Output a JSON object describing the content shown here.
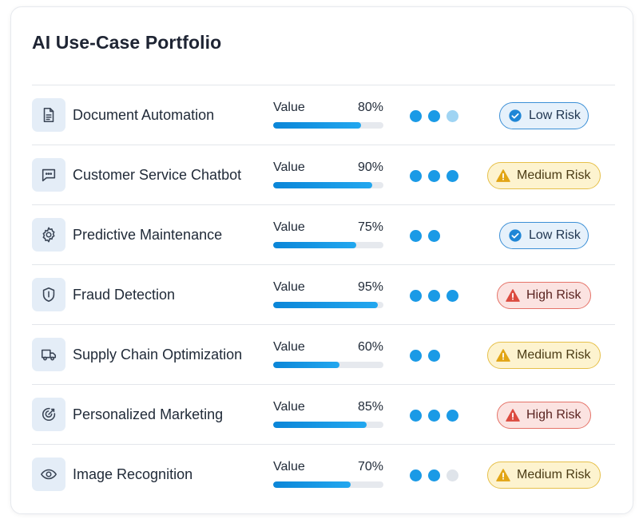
{
  "title": "AI Use-Case Portfolio",
  "colors": {
    "dot_on": "#1a9ae6",
    "dot_mid": "#9fd4f3",
    "dot_off": "#dfe4ea",
    "low_bg": "#e6f1fb",
    "low_border": "#3b8fd6",
    "low_text": "#1f3550",
    "medium_bg": "#fdf3cf",
    "medium_border": "#e6c04a",
    "medium_text": "#4a3b14",
    "high_bg": "#fbe3e1",
    "high_border": "#e57368",
    "high_text": "#5a2320"
  },
  "items": [
    {
      "name": "Document Automation",
      "icon": "document-icon",
      "metric_label": "Value",
      "pct_text": "80%",
      "value": 0.8,
      "dots": [
        "on",
        "on",
        "mid"
      ],
      "risk": "Low Risk",
      "risk_level": "low"
    },
    {
      "name": "Customer Service Chatbot",
      "icon": "chat-icon",
      "metric_label": "Value",
      "pct_text": "90%",
      "value": 0.9,
      "dots": [
        "on",
        "on",
        "on"
      ],
      "risk": "Medium Risk",
      "risk_level": "medium"
    },
    {
      "name": "Predictive Maintenance",
      "icon": "gear-icon",
      "metric_label": "Value",
      "pct_text": "75%",
      "value": 0.75,
      "dots": [
        "on",
        "on"
      ],
      "risk": "Low Risk",
      "risk_level": "low"
    },
    {
      "name": "Fraud Detection",
      "icon": "shield-icon",
      "metric_label": "Value",
      "pct_text": "95%",
      "value": 0.95,
      "dots": [
        "on",
        "on",
        "on"
      ],
      "risk": "High Risk",
      "risk_level": "high"
    },
    {
      "name": "Supply Chain Optimization",
      "icon": "truck-icon",
      "metric_label": "Value",
      "pct_text": "60%",
      "value": 0.6,
      "dots": [
        "on",
        "on"
      ],
      "risk": "Medium Risk",
      "risk_level": "medium"
    },
    {
      "name": "Personalized Marketing",
      "icon": "target-icon",
      "metric_label": "Value",
      "pct_text": "85%",
      "value": 0.85,
      "dots": [
        "on",
        "on",
        "on"
      ],
      "risk": "High Risk",
      "risk_level": "high"
    },
    {
      "name": "Image Recognition",
      "icon": "eye-icon",
      "metric_label": "Value",
      "pct_text": "70%",
      "value": 0.7,
      "dots": [
        "on",
        "on",
        "off"
      ],
      "risk": "Medium Risk",
      "risk_level": "medium"
    }
  ]
}
